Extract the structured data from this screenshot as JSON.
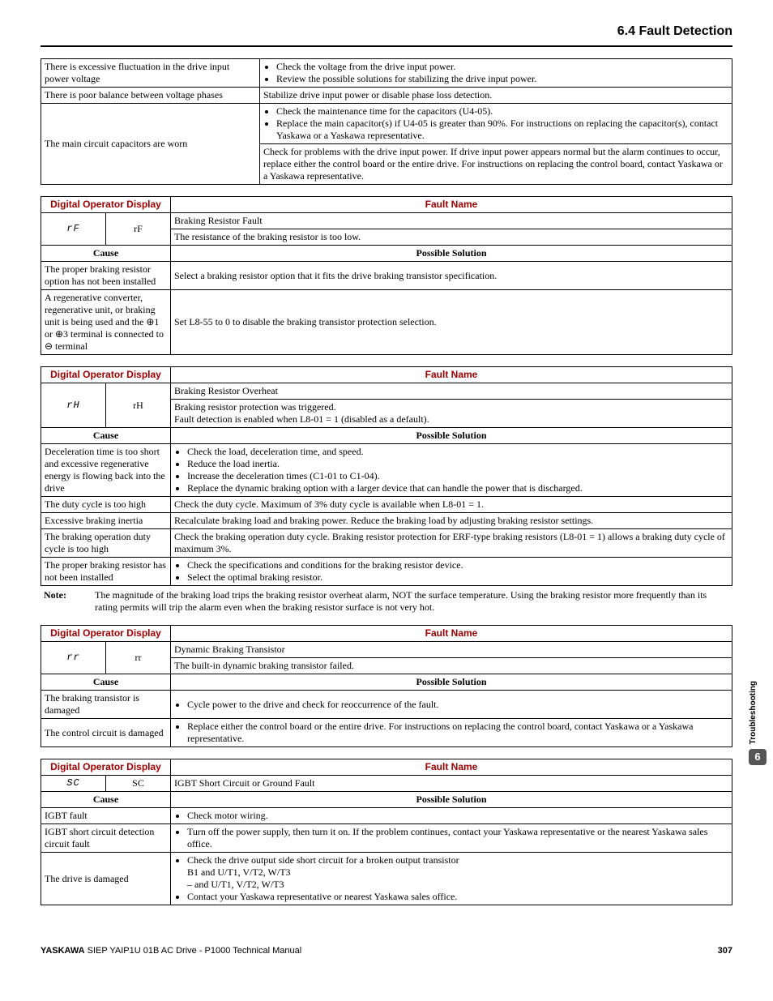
{
  "header": {
    "section": "6.4 Fault Detection"
  },
  "t1": {
    "r1c": "There is excessive fluctuation in the drive input power voltage",
    "r1s": [
      "Check the voltage from the drive input power.",
      "Review the possible solutions for stabilizing the drive input power."
    ],
    "r2c": "There is poor balance between voltage phases",
    "r2s": "Stabilize drive input power or disable phase loss detection.",
    "r3c": "The main circuit capacitors are worn",
    "r3s1": [
      "Check the maintenance time for the capacitors (U4-05).",
      "Replace the main capacitor(s) if U4-05 is greater than 90%. For instructions on replacing the capacitor(s), contact Yaskawa or a Yaskawa representative."
    ],
    "r3s2": "Check for problems with the drive input power. If drive input power appears normal but the alarm continues to occur, replace either the control board or the entire drive. For instructions on replacing the control board, contact Yaskawa or a Yaskawa representative."
  },
  "h": {
    "dod": "Digital Operator Display",
    "fn": "Fault Name",
    "cause": "Cause",
    "ps": "Possible Solution"
  },
  "t2": {
    "seg": "rF",
    "txt": "rF",
    "fname": "Braking Resistor Fault",
    "fdesc": "The resistance of the braking resistor is too low.",
    "rows": [
      {
        "c": "The proper braking resistor option has not been installed",
        "s": "Select a braking resistor option that it fits the drive braking transistor specification."
      },
      {
        "c": "A regenerative converter, regenerative unit, or braking unit is being used and the ⊕1 or ⊕3 terminal is connected to ⊖ terminal",
        "s": "Set L8-55 to 0 to disable the braking transistor protection selection."
      }
    ]
  },
  "t3": {
    "seg": "rH",
    "txt": "rH",
    "fname": "Braking Resistor Overheat",
    "fdesc": "Braking resistor protection was triggered.\nFault detection is enabled when L8-01 = 1 (disabled as a default).",
    "rows": [
      {
        "c": "Deceleration time is too short and excessive regenerative energy is flowing back into the drive",
        "s": [
          "Check the load, deceleration time, and speed.",
          "Reduce the load inertia.",
          "Increase the deceleration times (C1-01 to C1-04).",
          "Replace the dynamic braking option with a larger device that can handle the power that is discharged."
        ]
      },
      {
        "c": "The duty cycle is too high",
        "s": "Check the duty cycle. Maximum of 3% duty cycle is available when L8-01 = 1."
      },
      {
        "c": "Excessive braking inertia",
        "s": "Recalculate braking load and braking power. Reduce the braking load by adjusting braking resistor settings."
      },
      {
        "c": "The braking operation duty cycle is too high",
        "s": "Check the braking operation duty cycle. Braking resistor protection for ERF-type braking resistors (L8-01 = 1) allows a braking duty cycle of maximum 3%."
      },
      {
        "c": "The proper braking resistor has not been installed",
        "s": [
          "Check the specifications and conditions for the braking resistor device.",
          "Select the optimal braking resistor."
        ]
      }
    ],
    "noteLabel": "Note:",
    "note": "The magnitude of the braking load trips the braking resistor overheat alarm, NOT the surface temperature. Using the braking resistor more frequently than its rating permits will trip the alarm even when the braking resistor surface is not very hot."
  },
  "t4": {
    "seg": "rr",
    "txt": "rr",
    "fname": "Dynamic Braking Transistor",
    "fdesc": "The built-in dynamic braking transistor failed.",
    "rows": [
      {
        "c": "The braking transistor is damaged",
        "s": [
          "Cycle power to the drive and check for reoccurrence of the fault."
        ]
      },
      {
        "c": "The control circuit is damaged",
        "s": [
          "Replace either the control board or the entire drive. For instructions on replacing the control board, contact Yaskawa or a Yaskawa representative."
        ]
      }
    ]
  },
  "t5": {
    "seg": "SC",
    "txt": "SC",
    "fname": "IGBT Short Circuit or Ground Fault",
    "rows": [
      {
        "c": "IGBT fault",
        "s": [
          "Check motor wiring."
        ]
      },
      {
        "c": "IGBT short circuit detection circuit fault",
        "s": [
          "Turn off the power supply, then turn it on. If the problem continues, contact your Yaskawa representative or the nearest Yaskawa sales office."
        ]
      },
      {
        "c": "The drive is damaged",
        "s": [
          "Check the drive output side short circuit for a broken output transistor\nB1 and U/T1, V/T2, W/T3\n– and U/T1, V/T2, W/T3",
          "Contact your Yaskawa representative or nearest Yaskawa sales office."
        ]
      }
    ]
  },
  "side": {
    "label": "Troubleshooting",
    "num": "6"
  },
  "footer": {
    "brand": "YASKAWA",
    "doc": " SIEP YAIP1U 01B AC Drive - P1000 Technical Manual",
    "page": "307"
  }
}
